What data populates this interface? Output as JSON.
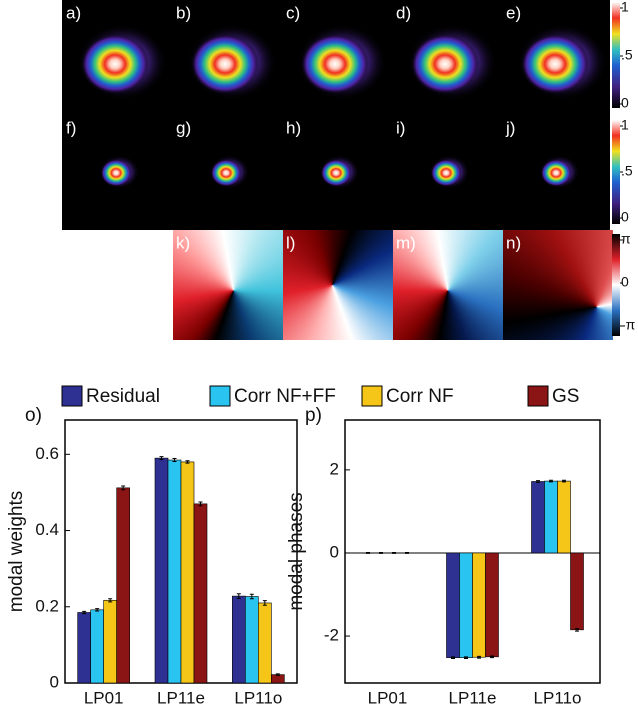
{
  "image_panels": {
    "intensity_labels": [
      [
        "a)",
        "b)",
        "c)",
        "d)",
        "e)"
      ],
      [
        "f)",
        "g)",
        "h)",
        "i)",
        "j)"
      ]
    ],
    "phase_labels": [
      "k)",
      "l)",
      "m)",
      "n)"
    ],
    "intensity_colorbar": {
      "lim": [
        0,
        1
      ],
      "ticks": [
        {
          "value": 1,
          "label": "1"
        },
        {
          "value": 0.5,
          "label": ".5"
        },
        0
      ]
    },
    "phase_colorbar": {
      "lim": [
        -3.14159,
        3.14159
      ],
      "ticks": [
        {
          "value": 3.14159,
          "label": "π"
        },
        0,
        {
          "value": -3.14159,
          "label": "-π"
        }
      ]
    }
  },
  "chart_data": [
    {
      "type": "bar",
      "label": "o)",
      "y_label": "modal weights",
      "categories": [
        "LP01",
        "LP11e",
        "LP11o"
      ],
      "series": [
        {
          "name": "Residual",
          "color": "#2e3192",
          "values": [
            0.185,
            0.59,
            0.228
          ],
          "errors": [
            0.003,
            0.004,
            0.006
          ]
        },
        {
          "name": "Corr NF+FF",
          "color": "#29c5f0",
          "values": [
            0.192,
            0.585,
            0.227
          ],
          "errors": [
            0.003,
            0.004,
            0.006
          ]
        },
        {
          "name": "Corr NF",
          "color": "#f5c518",
          "values": [
            0.217,
            0.58,
            0.21
          ],
          "errors": [
            0.004,
            0.003,
            0.006
          ]
        },
        {
          "name": "GS",
          "color": "#8b1414",
          "values": [
            0.512,
            0.47,
            0.022
          ],
          "errors": [
            0.005,
            0.005,
            0.002
          ]
        }
      ],
      "ylim": [
        0,
        0.69
      ],
      "yticks": [
        0,
        0.2,
        0.4,
        0.6
      ]
    },
    {
      "type": "bar",
      "label": "p)",
      "y_label": "modal phases",
      "categories": [
        "LP01",
        "LP11e",
        "LP11o"
      ],
      "series": [
        {
          "color": "#2e3192",
          "values": [
            0,
            -2.52,
            1.72
          ],
          "errors": [
            0.01,
            0.02,
            0.02
          ]
        },
        {
          "color": "#29c5f0",
          "values": [
            0,
            -2.52,
            1.73
          ],
          "errors": [
            0.01,
            0.02,
            0.02
          ]
        },
        {
          "color": "#f5c518",
          "values": [
            0,
            -2.51,
            1.73
          ],
          "errors": [
            0.01,
            0.02,
            0.02
          ]
        },
        {
          "color": "#8b1414",
          "values": [
            0,
            -2.5,
            -1.85
          ],
          "errors": [
            0.01,
            0.02,
            0.03
          ]
        }
      ],
      "ylim": [
        -3.13,
        3.2
      ],
      "yticks": [
        -2,
        0,
        2
      ]
    }
  ]
}
